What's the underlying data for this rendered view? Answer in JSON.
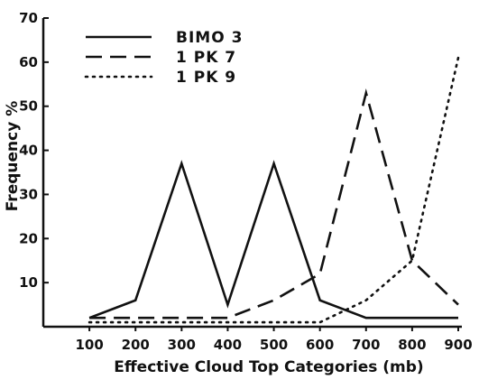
{
  "chart_data": {
    "type": "line",
    "xlabel": "Effective Cloud Top Categories (mb)",
    "ylabel": "Frequency %",
    "x": [
      100,
      200,
      300,
      400,
      500,
      600,
      700,
      800,
      900
    ],
    "x_tick_labels": [
      "100",
      "200",
      "300",
      "400",
      "500",
      "600",
      "700",
      "800",
      "900"
    ],
    "y_tick_labels": [
      "10",
      "20",
      "30",
      "40",
      "50",
      "60",
      "70"
    ],
    "y_ticks": [
      10,
      20,
      30,
      40,
      50,
      60,
      70
    ],
    "xlim": [
      0,
      900
    ],
    "ylim": [
      0,
      70
    ],
    "grid": false,
    "legend_position": "top-left",
    "series": [
      {
        "name": "BIMO 3",
        "style": "solid",
        "values": [
          2,
          6,
          37,
          5,
          37,
          6,
          2,
          2,
          2
        ]
      },
      {
        "name": "1 PK 7",
        "style": "dashed",
        "values": [
          2,
          2,
          2,
          2,
          6,
          12,
          53,
          15,
          5
        ]
      },
      {
        "name": "1 PK 9",
        "style": "dotted",
        "values": [
          1,
          1,
          1,
          1,
          1,
          1,
          6,
          15,
          61
        ]
      }
    ]
  }
}
